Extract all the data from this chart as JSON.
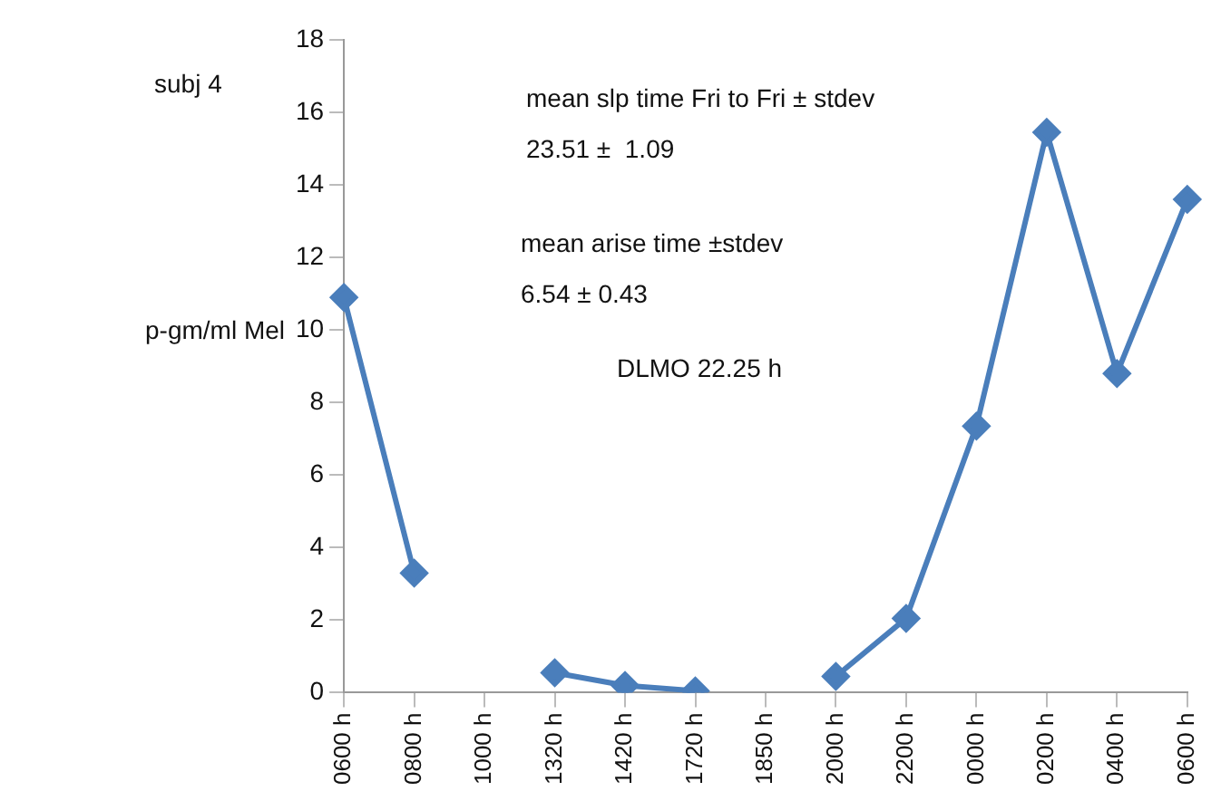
{
  "chart_data": {
    "type": "line",
    "title": "subj 4",
    "ylabel": "p-gm/ml Mel",
    "categories": [
      "0600 h",
      "0800 h",
      "1000 h",
      "1320 h",
      "1420 h",
      "1720 h",
      "1850 h",
      "2000 h",
      "2200 h",
      "0000 h",
      "0200 h",
      "0400 h",
      "0600 h"
    ],
    "series": [
      {
        "color": "#4a7ebb",
        "values": [
          10.9,
          3.3,
          null,
          0.55,
          0.2,
          0.05,
          null,
          0.45,
          2.05,
          7.35,
          15.45,
          8.8,
          13.6
        ]
      }
    ],
    "ylim": [
      0,
      18
    ],
    "yticks": [
      0,
      2,
      4,
      6,
      8,
      10,
      12,
      14,
      16,
      18
    ],
    "annotations": [
      "mean slp time Fri to Fri ± stdev",
      "23.51 ±  1.09",
      "mean arise time ±stdev",
      "6.54 ± 0.43",
      "DLMO 22.25 h"
    ],
    "grid": false,
    "legend": false,
    "marker": "diamond",
    "line_style": "solid"
  }
}
